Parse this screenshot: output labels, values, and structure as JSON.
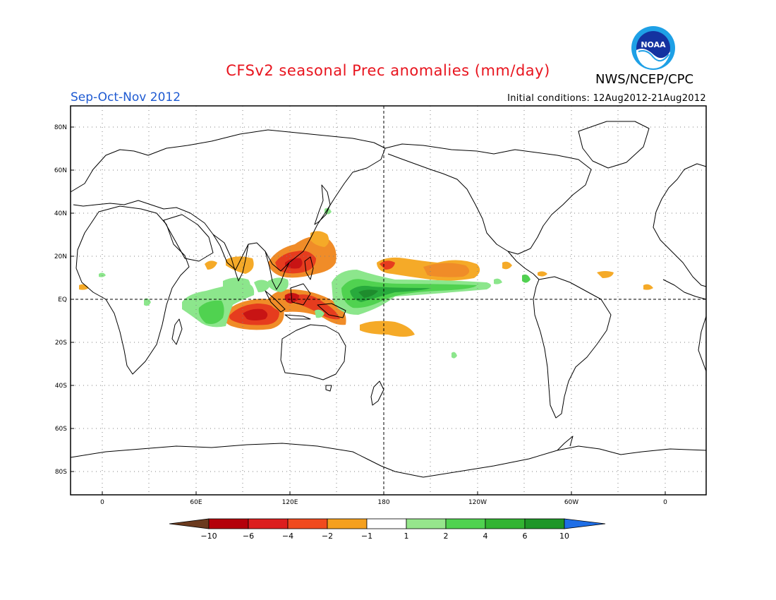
{
  "header": {
    "title": "CFSv2 seasonal Prec anomalies (mm/day)",
    "organization": "NWS/NCEP/CPC",
    "season": "Sep-Oct-Nov 2012",
    "initial_conditions": "Initial conditions: 12Aug2012-21Aug2012",
    "logo_text": "NOAA"
  },
  "map": {
    "lon_labels": [
      "0",
      "60E",
      "120E",
      "180",
      "120W",
      "60W",
      "0"
    ],
    "lat_labels": [
      "80N",
      "60N",
      "40N",
      "20N",
      "EQ",
      "20S",
      "40S",
      "60S",
      "80S"
    ]
  },
  "colorbar": {
    "labels": [
      "-10",
      "-6",
      "-4",
      "-2",
      "-1",
      "1",
      "2",
      "4",
      "6",
      "10"
    ],
    "colors": [
      "#6b3a1e",
      "#b4000a",
      "#dc1e1e",
      "#f04a1e",
      "#f5a01e",
      "#ffffff",
      "#96e68c",
      "#50d250",
      "#32b432",
      "#1e9628",
      "#1e6ee6"
    ]
  },
  "anomaly_colors": {
    "dry_extreme": "#c81414",
    "dry_strong": "#e63c1e",
    "dry_moderate": "#f08c28",
    "dry_weak": "#f5aa28",
    "wet_weak": "#8ce68c",
    "wet_moderate": "#50d250",
    "wet_strong": "#28aa3c",
    "wet_extreme": "#1e8c2d"
  }
}
